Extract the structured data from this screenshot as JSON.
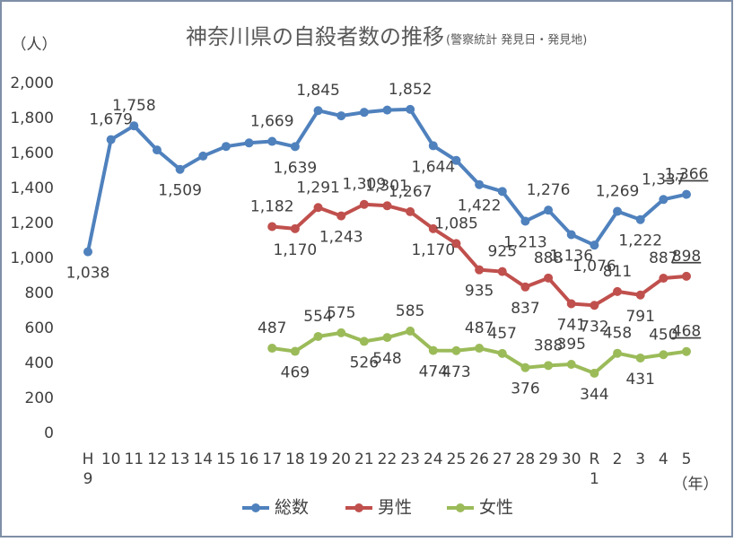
{
  "chart_data": {
    "type": "line",
    "title": "神奈川県の自殺者数の推移",
    "subtitle": "(警察統計 発見日・発見地)",
    "y_label": "（人）",
    "x_label": "（年）",
    "categories": [
      "H9",
      "10",
      "11",
      "12",
      "13",
      "14",
      "15",
      "16",
      "17",
      "18",
      "19",
      "20",
      "21",
      "22",
      "23",
      "24",
      "25",
      "26",
      "27",
      "28",
      "29",
      "30",
      "R1",
      "2",
      "3",
      "4",
      "5"
    ],
    "ylim": [
      0,
      2000
    ],
    "yticks": [
      0,
      200,
      400,
      600,
      800,
      {
        "value": 1000,
        "label": "1,000"
      },
      {
        "value": 1200,
        "label": "1,200"
      },
      {
        "value": 1400,
        "label": "1,400"
      },
      {
        "value": 1600,
        "label": "1,600"
      },
      {
        "value": 1800,
        "label": "1,800"
      },
      {
        "value": 2000,
        "label": "2,000"
      }
    ],
    "legend": "bottom",
    "underline_last_label": true,
    "series": [
      {
        "name": "総数",
        "color": "#4f81bd",
        "values": [
          1038,
          1679,
          1758,
          1620,
          1509,
          1585,
          1640,
          1660,
          1669,
          1639,
          1845,
          1815,
          1835,
          1848,
          1852,
          1644,
          1560,
          1422,
          1383,
          1213,
          1276,
          1136,
          1076,
          1269,
          1222,
          1337,
          1366
        ],
        "value_labels": [
          "1,038",
          "1,679",
          "1,758",
          null,
          "1,509",
          null,
          null,
          null,
          "1,669",
          "1,639",
          "1,845",
          null,
          null,
          null,
          "1,852",
          "1,644",
          null,
          "1,422",
          null,
          "1,213",
          "1,276",
          "1,136",
          "1,076",
          "1,269",
          "1,222",
          "1,337",
          "1,366"
        ]
      },
      {
        "name": "男性",
        "color": "#c0504d",
        "values": [
          null,
          null,
          null,
          null,
          null,
          null,
          null,
          null,
          1182,
          1170,
          1291,
          1243,
          1309,
          1301,
          1267,
          1170,
          1085,
          935,
          925,
          837,
          888,
          741,
          732,
          811,
          791,
          887,
          898
        ],
        "value_labels": [
          null,
          null,
          null,
          null,
          null,
          null,
          null,
          null,
          "1,182",
          "1,170",
          "1,291",
          "1,243",
          "1,309",
          "1,301",
          "1,267",
          "1,170",
          "1,085",
          "935",
          "925",
          "837",
          "888",
          "741",
          "732",
          "811",
          "791",
          "887",
          "898"
        ]
      },
      {
        "name": "女性",
        "color": "#9bbb59",
        "values": [
          null,
          null,
          null,
          null,
          null,
          null,
          null,
          null,
          487,
          469,
          554,
          575,
          526,
          548,
          585,
          474,
          473,
          487,
          457,
          376,
          388,
          395,
          344,
          458,
          431,
          450,
          468
        ],
        "value_labels": [
          null,
          null,
          null,
          null,
          null,
          null,
          null,
          null,
          "487",
          "469",
          "554",
          "575",
          "526",
          "548",
          "585",
          "474",
          "473",
          "487",
          "457",
          "376",
          "388",
          "395",
          "344",
          "458",
          "431",
          "450",
          "468"
        ]
      }
    ]
  }
}
